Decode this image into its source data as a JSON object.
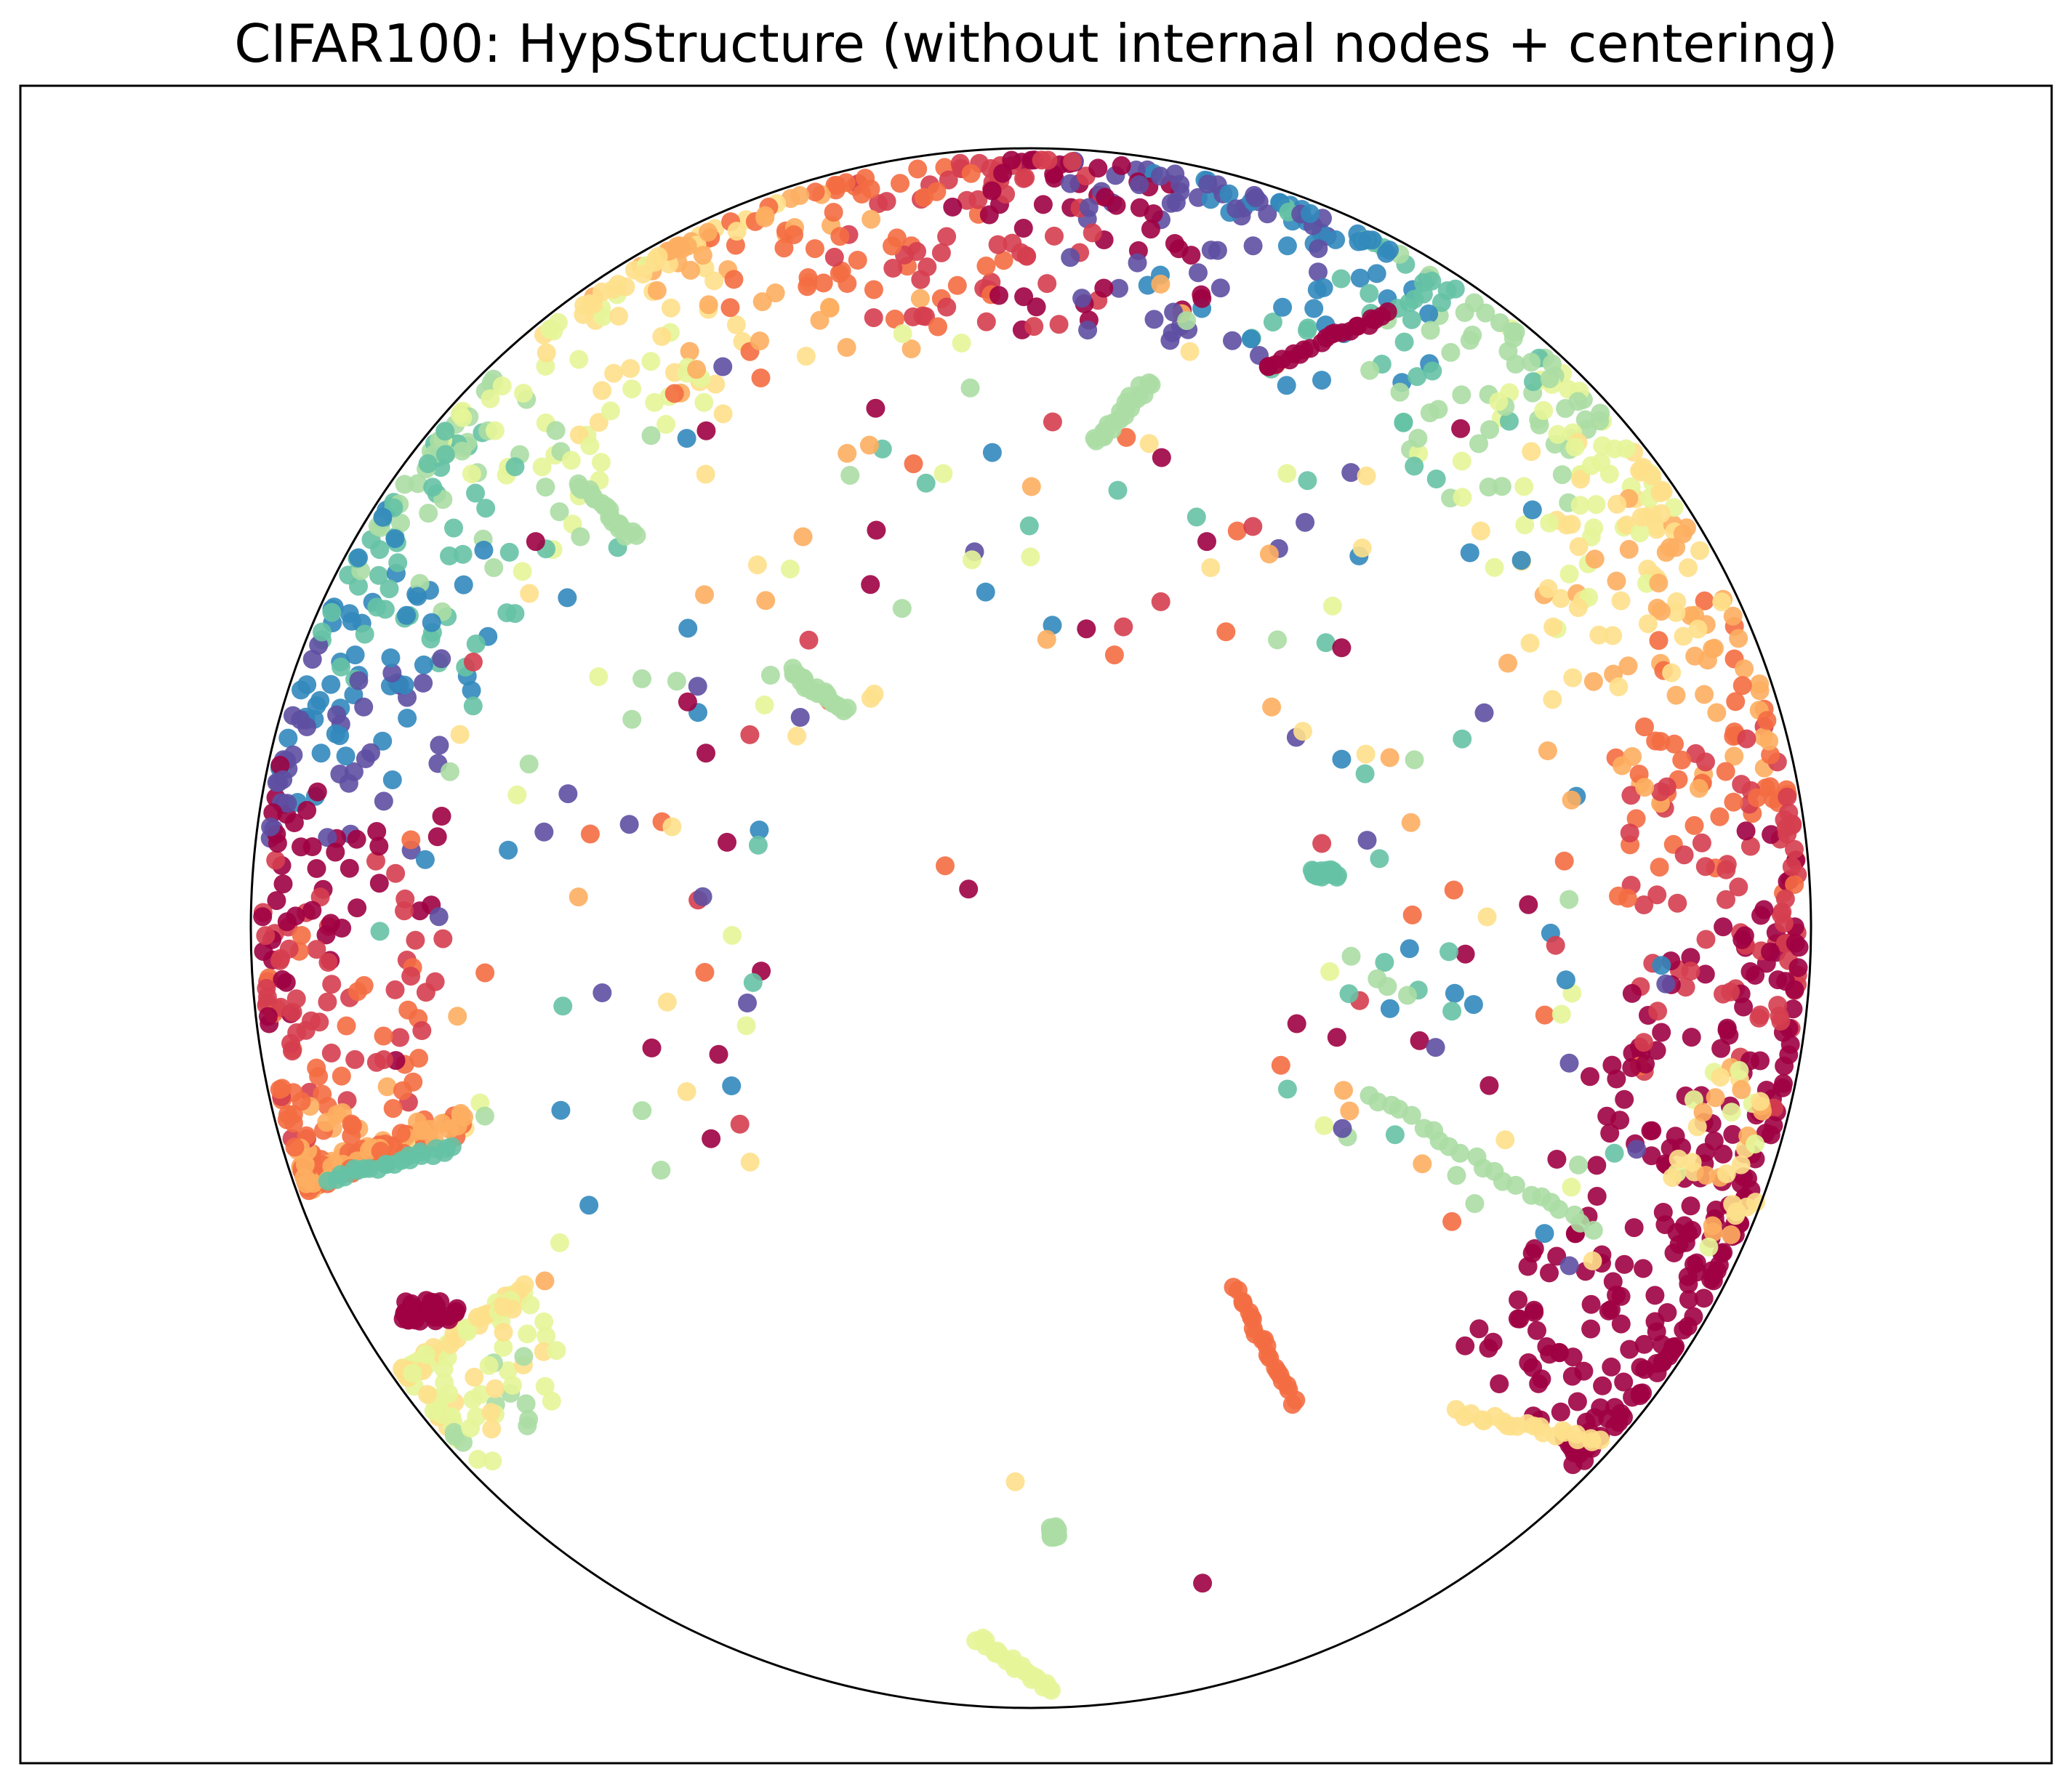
{
  "chart_data": {
    "type": "scatter",
    "title": "CIFAR100: HypStructure (without internal nodes + centering)",
    "xlabel": "",
    "ylabel": "",
    "xlim": [
      -1.05,
      1.05
    ],
    "ylim": [
      -1.05,
      1.05
    ],
    "axes_ticks": false,
    "grid": false,
    "boundary": "unit-circle",
    "palette": [
      "#9e0142",
      "#d53e4f",
      "#f46d43",
      "#fdae61",
      "#fee08b",
      "#e6f598",
      "#abdda4",
      "#66c2a5",
      "#3288bd",
      "#5e4fa2"
    ],
    "notable_points": [
      {
        "x": -0.77,
        "y": -0.49,
        "color": "#9e0142"
      },
      {
        "x": -0.08,
        "y": 0.05,
        "color": "#9e0142"
      },
      {
        "x": -0.44,
        "y": 0.29,
        "color": "#9e0142"
      },
      {
        "x": -0.41,
        "y": -0.27,
        "color": "#9e0142"
      },
      {
        "x": 0.22,
        "y": -0.84,
        "color": "#9e0142"
      },
      {
        "x": -0.11,
        "y": 0.08,
        "color": "#f46d43"
      },
      {
        "x": -0.58,
        "y": 0.04,
        "color": "#fdae61"
      },
      {
        "x": -0.34,
        "y": 0.42,
        "color": "#fdae61"
      },
      {
        "x": 0.25,
        "y": 0.38,
        "color": "#f46d43"
      },
      {
        "x": -0.02,
        "y": -0.71,
        "color": "#fee08b"
      },
      {
        "x": -0.36,
        "y": -0.3,
        "color": "#fee08b"
      },
      {
        "x": -0.46,
        "y": 0.13,
        "color": "#fee08b"
      },
      {
        "x": -0.6,
        "y": -0.1,
        "color": "#66c2a5"
      },
      {
        "x": -0.67,
        "y": 0.1,
        "color": "#3288bd"
      }
    ],
    "series": [
      {
        "color": "#abdda4",
        "segments": [
          [
            -0.58,
            0.57,
            -0.51,
            0.5
          ],
          [
            0.03,
            -0.78,
            0.03,
            -0.77
          ],
          [
            0.43,
            -0.21,
            0.72,
            -0.39
          ],
          [
            0.08,
            0.62,
            0.15,
            0.7
          ],
          [
            -0.31,
            0.33,
            -0.24,
            0.28
          ]
        ]
      },
      {
        "color": "#e6f598",
        "segments": [
          [
            -0.07,
            -0.91,
            0.03,
            -0.98
          ]
        ]
      },
      {
        "color": "#f46d43",
        "segments": [
          [
            0.26,
            -0.46,
            0.34,
            -0.61
          ]
        ]
      },
      {
        "color": "#fee08b",
        "segments": [
          [
            0.55,
            -0.62,
            0.73,
            -0.66
          ]
        ]
      },
      {
        "color": "#66c2a5",
        "segments": [
          [
            -0.9,
            -0.32,
            -0.74,
            -0.28
          ],
          [
            0.36,
            0.07,
            0.39,
            0.07
          ]
        ]
      },
      {
        "color": "#9e0142",
        "segments": [
          [
            0.3,
            0.72,
            0.46,
            0.79
          ]
        ]
      }
    ]
  }
}
